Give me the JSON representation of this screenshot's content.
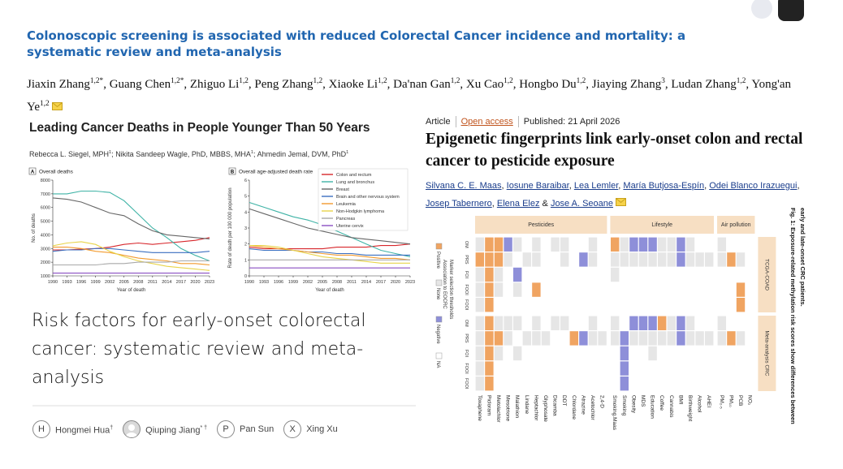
{
  "article_top": {
    "title": "Colonoscopic screening is associated with reduced Colorectal Cancer incidence and mortality: a systematic review and meta-analysis",
    "authors": [
      {
        "name": "Jiaxin Zhang",
        "sup": "1,2*",
        "sep": ","
      },
      {
        "name": "Guang Chen",
        "sup": "1,2*",
        "sep": ","
      },
      {
        "name": "Zhiguo Li",
        "sup": "1,2",
        "sep": ","
      },
      {
        "name": "Peng Zhang",
        "sup": "1,2",
        "sep": ","
      },
      {
        "name": "Xiaoke Li",
        "sup": "1,2",
        "sep": ","
      },
      {
        "name": "Da'nan Gan",
        "sup": "1,2",
        "sep": ","
      },
      {
        "name": "Xu Cao",
        "sup": "1,2",
        "sep": ","
      },
      {
        "name": "Hongbo Du",
        "sup": "1,2",
        "sep": ","
      },
      {
        "name": "Jiaying Zhang",
        "sup": "3",
        "sep": ","
      },
      {
        "name": "Ludan Zhang",
        "sup": "1,2",
        "sep": ","
      },
      {
        "name": "Yong'an Ye",
        "sup": "1,2"
      }
    ]
  },
  "deaths_figure": {
    "title": "Leading Cancer Deaths in People Younger Than 50 Years",
    "authors": [
      {
        "name": "Rebecca L. Siegel, MPH",
        "sup": "1",
        "sep": ";"
      },
      {
        "name": "Nikita Sandeep Wagle, PhD, MBBS, MHA",
        "sup": "1",
        "sep": ";"
      },
      {
        "name": "Ahmedin Jemal, DVM, PhD",
        "sup": "1"
      }
    ],
    "legend": [
      {
        "name": "Colon and rectum",
        "color": "#d7262b"
      },
      {
        "name": "Lung and bronchus",
        "color": "#3fb3a6"
      },
      {
        "name": "Breast",
        "color": "#666666"
      },
      {
        "name": "Brain and other nervous system",
        "color": "#3a6fc0"
      },
      {
        "name": "Leukemia",
        "color": "#f29a2e"
      },
      {
        "name": "Non-Hodgkin lymphoma",
        "color": "#e8d44a"
      },
      {
        "name": "Pancreas",
        "color": "#a9a9a9"
      },
      {
        "name": "Uterine cervix",
        "color": "#8a4fc2"
      }
    ],
    "panels": [
      {
        "label": "A",
        "title": "Overall deaths",
        "ylabel": "No. of deaths",
        "xlabel": "Year of death",
        "ylim": [
          1000,
          8000
        ],
        "yticks": [
          1000,
          2000,
          3000,
          4000,
          5000,
          6000,
          7000,
          8000
        ],
        "xlim": [
          1990,
          2023
        ],
        "xticks": [
          1990,
          1993,
          1996,
          1999,
          2002,
          2005,
          2008,
          2011,
          2014,
          2017,
          2020,
          2023
        ],
        "x": [
          1990,
          1993,
          1996,
          1999,
          2002,
          2005,
          2008,
          2011,
          2014,
          2017,
          2020,
          2023
        ],
        "series": [
          {
            "values": [
              2900,
              2900,
              2950,
              3000,
              3100,
              3300,
              3400,
              3300,
              3400,
              3500,
              3600,
              3800
            ]
          },
          {
            "values": [
              7000,
              7000,
              7200,
              7200,
              7100,
              6500,
              5500,
              4500,
              3800,
              3000,
              2500,
              2100
            ]
          },
          {
            "values": [
              6700,
              6600,
              6400,
              6000,
              5600,
              5400,
              4800,
              4300,
              4000,
              3900,
              3800,
              3700
            ]
          },
          {
            "values": [
              2800,
              2900,
              2900,
              3000,
              3000,
              2900,
              2800,
              2700,
              2700,
              2700,
              2700,
              2800
            ]
          },
          {
            "values": [
              3100,
              3100,
              3000,
              2800,
              2700,
              2500,
              2300,
              2200,
              2100,
              1900,
              1900,
              1800
            ]
          },
          {
            "values": [
              3200,
              3400,
              3500,
              3300,
              2800,
              2400,
              2100,
              1900,
              1700,
              1600,
              1500,
              1400
            ]
          },
          {
            "values": [
              1800,
              1800,
              1800,
              1800,
              1900,
              1900,
              2000,
              2000,
              2000,
              2100,
              2100,
              2100
            ]
          },
          {
            "values": [
              1200,
              1200,
              1200,
              1200,
              1200,
              1200,
              1200,
              1200,
              1200,
              1200,
              1200,
              1200
            ]
          }
        ]
      },
      {
        "label": "B",
        "title": "Overall age-adjusted death rate",
        "ylabel": "Rate of death per 100 000 population",
        "xlabel": "Year of death",
        "ylim": [
          0,
          6
        ],
        "yticks": [
          0,
          1,
          2,
          3,
          4,
          5,
          6
        ],
        "xlim": [
          1990,
          2023
        ],
        "xticks": [
          1990,
          1993,
          1996,
          1999,
          2002,
          2005,
          2008,
          2011,
          2014,
          2017,
          2020,
          2023
        ],
        "x": [
          1990,
          1993,
          1996,
          1999,
          2002,
          2005,
          2008,
          2011,
          2014,
          2017,
          2020,
          2023
        ],
        "series": [
          {
            "values": [
              1.8,
              1.7,
              1.7,
              1.7,
              1.7,
              1.7,
              1.8,
              1.8,
              1.8,
              1.9,
              1.9,
              2.0
            ]
          },
          {
            "values": [
              4.6,
              4.3,
              4.0,
              3.7,
              3.5,
              3.2,
              2.8,
              2.4,
              2.0,
              1.6,
              1.4,
              1.2
            ]
          },
          {
            "values": [
              4.2,
              3.9,
              3.6,
              3.3,
              3.0,
              2.8,
              2.6,
              2.4,
              2.3,
              2.2,
              2.1,
              2.0
            ]
          },
          {
            "values": [
              1.7,
              1.6,
              1.6,
              1.6,
              1.5,
              1.5,
              1.4,
              1.4,
              1.3,
              1.3,
              1.3,
              1.3
            ]
          },
          {
            "values": [
              1.9,
              1.8,
              1.7,
              1.6,
              1.5,
              1.4,
              1.3,
              1.3,
              1.2,
              1.1,
              1.1,
              1.0
            ]
          },
          {
            "values": [
              1.9,
              1.9,
              1.8,
              1.6,
              1.4,
              1.2,
              1.1,
              1.0,
              0.9,
              0.8,
              0.8,
              0.8
            ]
          },
          {
            "values": [
              1.0,
              1.0,
              1.0,
              1.0,
              1.0,
              1.0,
              1.0,
              1.0,
              1.0,
              1.0,
              1.0,
              1.0
            ]
          },
          {
            "values": [
              0.5,
              0.5,
              0.5,
              0.5,
              0.5,
              0.5,
              0.5,
              0.5,
              0.5,
              0.5,
              0.5,
              0.5
            ]
          }
        ]
      }
    ]
  },
  "risk_paper": {
    "title": "Risk factors for early-onset colorectal cancer: systematic review and meta-analysis",
    "authors": [
      {
        "initial": "H",
        "name": "Hongmei Hua",
        "sup": "†"
      },
      {
        "name": "Qiuping Jiang",
        "sup": "* †"
      },
      {
        "initial": "P",
        "name": "Pan Sun"
      },
      {
        "initial": "X",
        "name": "Xing Xu"
      }
    ]
  },
  "nature_article": {
    "kind": "Article",
    "access": "Open access",
    "published": "Published: 21 April 2026",
    "title": "Epigenetic fingerprints link early-onset colon and rectal cancer to pesticide exposure",
    "authors": [
      {
        "name": "Silvana C. E. Maas",
        "sep": ","
      },
      {
        "name": "Iosune Baraibar",
        "sep": ","
      },
      {
        "name": "Lea Lemler",
        "sep": ","
      },
      {
        "name": "María Butjosa-Espín",
        "sep": ","
      },
      {
        "name": "Odei Blanco Irazuegui",
        "sep": ","
      },
      {
        "name": "Josep Tabernero",
        "sep": ","
      },
      {
        "name": "Elena Elez",
        "sep": "&"
      },
      {
        "name": "Jose A. Seoane"
      }
    ],
    "figure": {
      "caption": "Fig. 1: Exposure-related methylation risk scores show differences between early and late-onset CRC patients.",
      "groups": [
        {
          "label": "Pesticides",
          "columns": [
            "Toxaphene",
            "Picloram",
            "Metolachlor",
            "Mesotrione",
            "Malathion",
            "Lindane",
            "Heptachlor",
            "Glyphosate",
            "Dicamba",
            "DDT",
            "Chlordane",
            "Atrazine",
            "Acetochlor",
            "2,4-D"
          ]
        },
        {
          "label": "Lifestyle",
          "columns": [
            "Smoking.Maas",
            "Smoking",
            "Obesity",
            "MDS",
            "Education",
            "Coffee",
            "Cannabis",
            "BMI",
            "Birthweight",
            "Alcohol",
            "AHEI"
          ]
        },
        {
          "label": "Air pollution",
          "columns": [
            "PM₂.₅",
            "PM₁₀",
            "PCB",
            "NO₂"
          ]
        }
      ],
      "row_groups": [
        {
          "label": "TCGA-COAD",
          "rows": [
            "OM",
            "PRS",
            "FOI",
            "FOOI",
            "FOOI"
          ],
          "cells": [
            "10021313113313012221121331333",
            "00013113313213111111121111013",
            "10132333333333133333333333333",
            "10131303333333333333333333303",
            "10333333333333333333333333303"
          ]
        },
        {
          "label": "Meta-analysis CRC",
          "rows": [
            "OM",
            "PRS",
            "FOI",
            "FOOI",
            "FOOI"
          ],
          "cells": [
            "10111313113313132220121331333",
            "10013111330211121111121111013",
            "10131333333333323313333333333",
            "10333333333333323333333333333",
            "10333333333333323333333333333"
          ]
        }
      ],
      "legend": {
        "titles": [
          "Marker selection thresholds",
          "Association to EOCRC"
        ],
        "items": [
          {
            "label": "Positive",
            "color": "#f0a461"
          },
          {
            "label": "None",
            "color": "#e6e6e6"
          },
          {
            "label": "Negative",
            "color": "#8e8fd9"
          },
          {
            "label": "NA",
            "color": "#ffffff"
          }
        ]
      }
    }
  }
}
